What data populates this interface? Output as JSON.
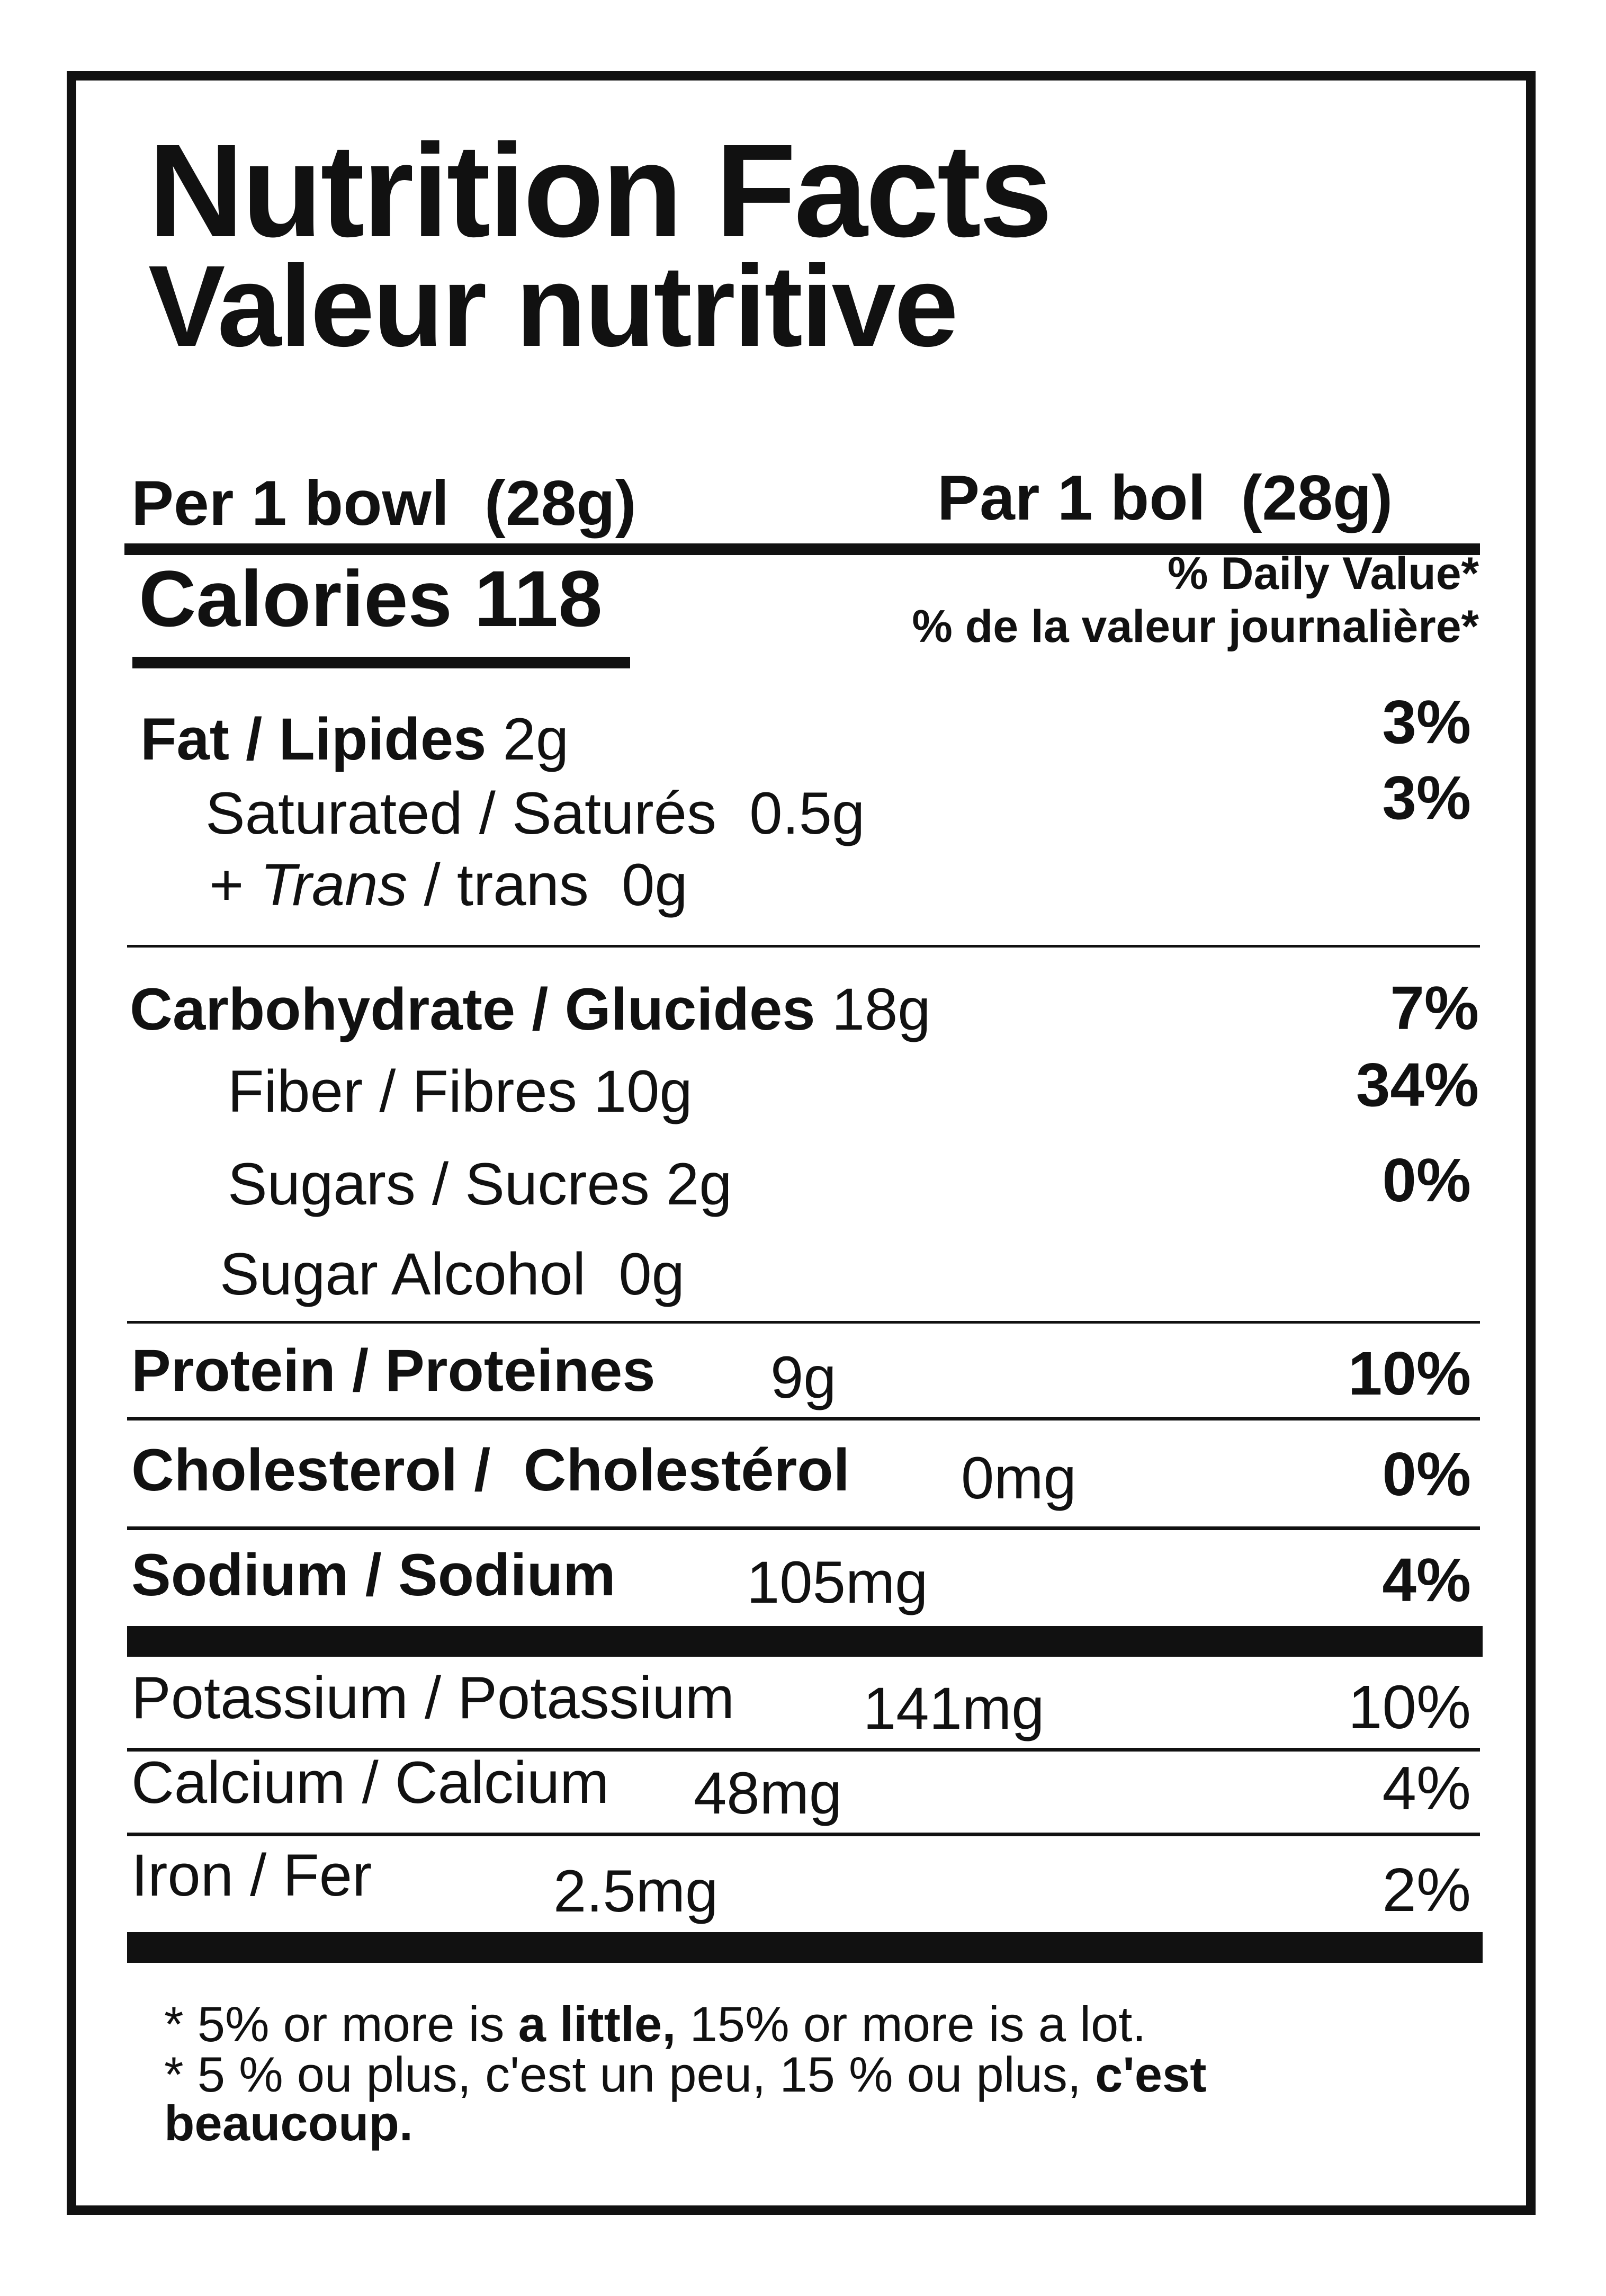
{
  "title": {
    "en": "Nutrition Facts",
    "fr": "Valeur nutritive"
  },
  "serving": {
    "en_label": "Per 1 bowl",
    "en_amount": "(28g)",
    "fr_label": "Par 1 bol",
    "fr_amount": "(28g)"
  },
  "calories": {
    "label": "Calories",
    "value": "118"
  },
  "daily_value_header": {
    "en": "% Daily Value*",
    "fr": "% de la valeur journalière*"
  },
  "fat": {
    "label": "Fat / Lipides",
    "amount": "2g",
    "dv": "3%"
  },
  "saturated": {
    "label": "Saturated / Saturés",
    "amount": "0.5g",
    "dv": "3%"
  },
  "trans": {
    "prefix": "+",
    "label_italic": "Trans",
    "label_rest": "/ trans",
    "amount": "0g"
  },
  "carbohydrate": {
    "label": "Carbohydrate / Glucides",
    "amount": "18g",
    "dv": "7%"
  },
  "fiber": {
    "label": "Fiber / Fibres",
    "amount": "10g",
    "dv": "34%"
  },
  "sugars": {
    "label": "Sugars / Sucres",
    "amount": "2g",
    "dv": "0%"
  },
  "sugar_alcohol": {
    "label": "Sugar Alcohol",
    "amount": "0g"
  },
  "protein": {
    "label": "Protein / Proteines",
    "amount": "9g",
    "dv": "10%"
  },
  "cholesterol": {
    "label": "Cholesterol /  Cholestérol",
    "amount": "0mg",
    "dv": "0%"
  },
  "sodium": {
    "label": "Sodium / Sodium",
    "amount": "105mg",
    "dv": "4%"
  },
  "potassium": {
    "label": "Potassium / Potassium",
    "amount": "141mg",
    "dv": "10%"
  },
  "calcium": {
    "label": "Calcium / Calcium",
    "amount": "48mg",
    "dv": "4%"
  },
  "iron": {
    "label": "Iron / Fer",
    "amount": "2.5mg",
    "dv": "2%"
  },
  "footnote": {
    "line1_a": "* 5% or more is ",
    "line1_b": "a little,",
    "line1_c": " 15% or more is a lot.",
    "line2_a": "* 5 % ou plus, c'est un peu, 15 % ou plus, ",
    "line2_b": "c'est",
    "line3": "beaucoup."
  }
}
